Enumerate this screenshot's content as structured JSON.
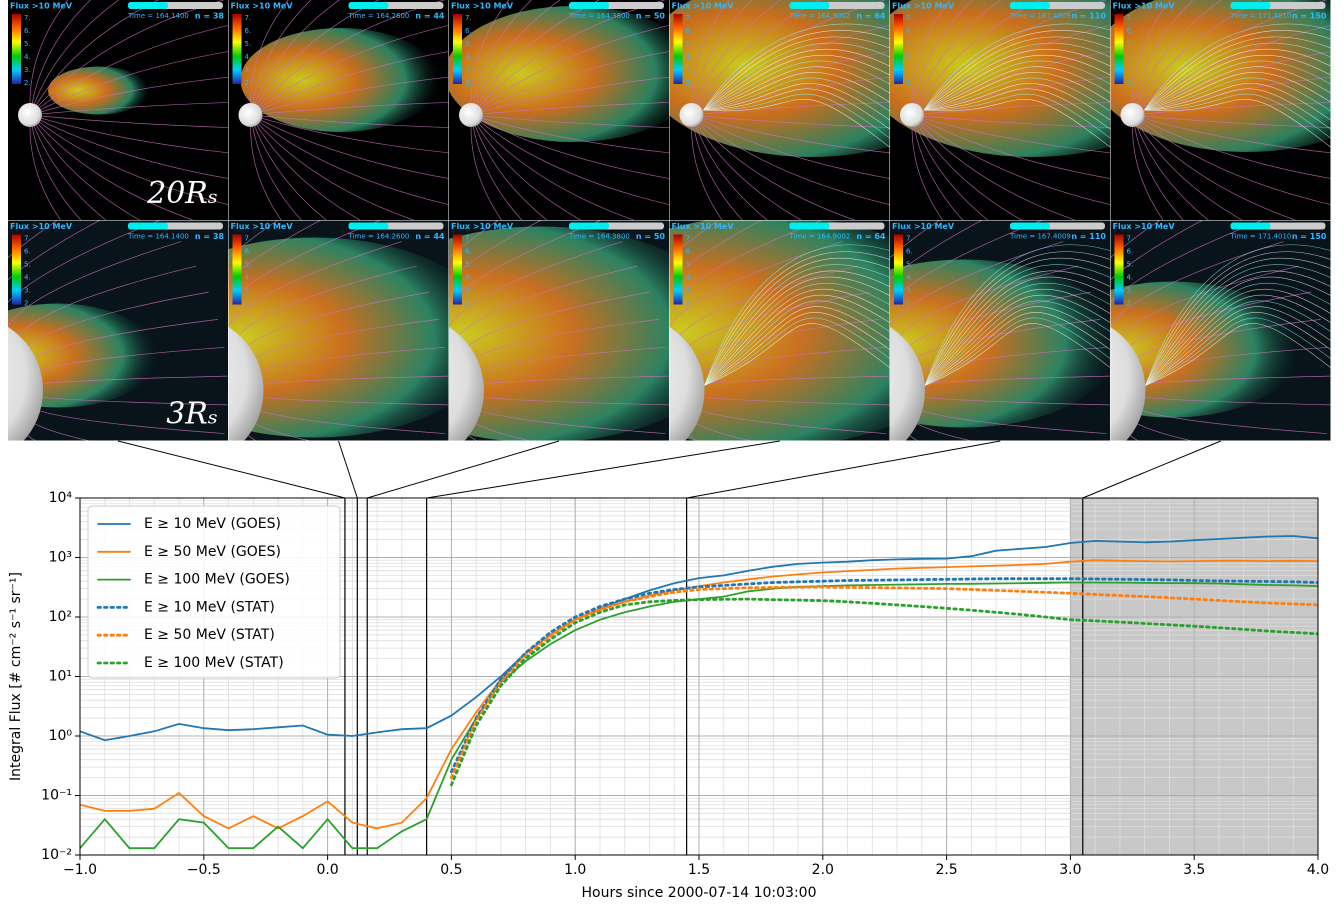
{
  "panel_title": "Flux >10 MeV",
  "colorbar_ticks": [
    "7.",
    "6.",
    "5.",
    "4.",
    "3.",
    "2."
  ],
  "row_labels": [
    "20Rₛ",
    "3Rₛ"
  ],
  "panels": [
    {
      "time": "Time = 164.1400",
      "n": "n = 38"
    },
    {
      "time": "Time = 164.2600",
      "n": "n = 44"
    },
    {
      "time": "Time = 164.3800",
      "n": "n = 50"
    },
    {
      "time": "Time = 164.9002",
      "n": "n = 64"
    },
    {
      "time": "Time = 167.4009",
      "n": "n = 110"
    },
    {
      "time": "Time = 171.4010",
      "n": "n = 150"
    },
    {
      "time": "Time = 164.1400",
      "n": "n = 38"
    },
    {
      "time": "Time = 164.2600",
      "n": "n = 44"
    },
    {
      "time": "Time = 164.3800",
      "n": "n = 50"
    },
    {
      "time": "Time = 164.9002",
      "n": "n = 64"
    },
    {
      "time": "Time = 167.4009",
      "n": "n = 110"
    },
    {
      "time": "Time = 171.4010",
      "n": "n = 150"
    }
  ],
  "chart_data": {
    "type": "line",
    "xlabel": "Hours since 2000-07-14 10:03:00",
    "ylabel": "Integral Flux [# cm⁻² s⁻¹ sr⁻¹]",
    "log_y": true,
    "grid": true,
    "minor_grid": true,
    "legend": "upper left",
    "xlim": [
      -1,
      4
    ],
    "ylim": [
      0.01,
      10000
    ],
    "xticks": [
      {
        "value": -1,
        "label": "−1.0"
      },
      {
        "value": -0.5,
        "label": "−0.5"
      },
      {
        "value": 0,
        "label": "0.0"
      },
      {
        "value": 0.5,
        "label": "0.5"
      },
      {
        "value": 1,
        "label": "1.0"
      },
      {
        "value": 1.5,
        "label": "1.5"
      },
      {
        "value": 2,
        "label": "2.0"
      },
      {
        "value": 2.5,
        "label": "2.5"
      },
      {
        "value": 3,
        "label": "3.0"
      },
      {
        "value": 3.5,
        "label": "3.5"
      },
      {
        "value": 4,
        "label": "4.0"
      }
    ],
    "yticks": [
      {
        "value": 0.01,
        "label": "10⁻²"
      },
      {
        "value": 0.1,
        "label": "10⁻¹"
      },
      {
        "value": 1,
        "label": "10⁰"
      },
      {
        "value": 10,
        "label": "10¹"
      },
      {
        "value": 100,
        "label": "10²"
      },
      {
        "value": 1000,
        "label": "10³"
      },
      {
        "value": 10000,
        "label": "10⁴"
      }
    ],
    "vlines": [
      0.07,
      0.12,
      0.16,
      0.4,
      1.45,
      3.05
    ],
    "shade": [
      3.0,
      4.0
    ],
    "x": [
      -1.0,
      -0.9,
      -0.8,
      -0.7,
      -0.6,
      -0.5,
      -0.4,
      -0.3,
      -0.2,
      -0.1,
      0.0,
      0.1,
      0.2,
      0.3,
      0.4,
      0.5,
      0.6,
      0.7,
      0.8,
      0.9,
      1.0,
      1.1,
      1.2,
      1.3,
      1.4,
      1.5,
      1.6,
      1.7,
      1.8,
      1.9,
      2.0,
      2.1,
      2.2,
      2.3,
      2.4,
      2.5,
      2.6,
      2.7,
      2.8,
      2.9,
      3.0,
      3.1,
      3.2,
      3.3,
      3.4,
      3.5,
      3.6,
      3.7,
      3.8,
      3.9,
      4.0
    ],
    "series": [
      {
        "name": "E ≥ 10 MeV (GOES)",
        "color": "#1f77b4",
        "style": "solid",
        "values": [
          1.2,
          0.85,
          1.0,
          1.2,
          1.6,
          1.35,
          1.25,
          1.3,
          1.4,
          1.5,
          1.05,
          1.0,
          1.15,
          1.3,
          1.35,
          2.2,
          4.5,
          10,
          25,
          50,
          90,
          140,
          200,
          280,
          370,
          450,
          500,
          600,
          700,
          780,
          820,
          850,
          900,
          930,
          950,
          960,
          1050,
          1300,
          1400,
          1500,
          1750,
          1900,
          1850,
          1800,
          1850,
          1950,
          2050,
          2150,
          2250,
          2300,
          2100
        ]
      },
      {
        "name": "E ≥ 50 MeV (GOES)",
        "color": "#ff7f0e",
        "style": "solid",
        "values": [
          0.07,
          0.055,
          0.055,
          0.06,
          0.11,
          0.045,
          0.028,
          0.045,
          0.028,
          0.045,
          0.08,
          0.035,
          0.028,
          0.035,
          0.09,
          0.6,
          2.5,
          9,
          25,
          50,
          90,
          130,
          180,
          230,
          280,
          330,
          380,
          430,
          480,
          520,
          560,
          590,
          620,
          650,
          670,
          690,
          710,
          730,
          750,
          780,
          850,
          900,
          880,
          870,
          860,
          870,
          880,
          880,
          870,
          880,
          870
        ]
      },
      {
        "name": "E ≥ 100 MeV (GOES)",
        "color": "#2ca02c",
        "style": "solid",
        "values": [
          0.013,
          0.04,
          0.013,
          0.013,
          0.04,
          0.035,
          0.013,
          0.013,
          0.03,
          0.013,
          0.04,
          0.013,
          0.013,
          0.025,
          0.04,
          0.4,
          2,
          8,
          18,
          35,
          60,
          90,
          120,
          150,
          180,
          200,
          220,
          270,
          300,
          320,
          330,
          340,
          345,
          350,
          355,
          360,
          362,
          365,
          370,
          375,
          380,
          380,
          378,
          375,
          372,
          370,
          365,
          355,
          345,
          340,
          330
        ]
      },
      {
        "name": "E ≥ 10 MeV (STAT)",
        "color": "#1f77b4",
        "style": "dotted",
        "values": [
          null,
          null,
          null,
          null,
          null,
          null,
          null,
          null,
          null,
          null,
          null,
          null,
          null,
          null,
          null,
          0.25,
          2,
          9,
          25,
          55,
          100,
          150,
          200,
          250,
          290,
          320,
          340,
          360,
          380,
          390,
          400,
          410,
          415,
          420,
          425,
          430,
          435,
          440,
          440,
          440,
          440,
          435,
          430,
          425,
          420,
          410,
          405,
          400,
          395,
          390,
          380
        ]
      },
      {
        "name": "E ≥ 50 MeV (STAT)",
        "color": "#ff7f0e",
        "style": "dotted",
        "values": [
          null,
          null,
          null,
          null,
          null,
          null,
          null,
          null,
          null,
          null,
          null,
          null,
          null,
          null,
          null,
          0.2,
          1.8,
          8,
          22,
          48,
          90,
          135,
          180,
          220,
          260,
          290,
          300,
          310,
          315,
          318,
          320,
          315,
          312,
          308,
          304,
          300,
          290,
          280,
          270,
          260,
          250,
          240,
          230,
          220,
          210,
          200,
          190,
          180,
          172,
          166,
          160
        ]
      },
      {
        "name": "E ≥ 100 MeV (STAT)",
        "color": "#2ca02c",
        "style": "dotted",
        "values": [
          null,
          null,
          null,
          null,
          null,
          null,
          null,
          null,
          null,
          null,
          null,
          null,
          null,
          null,
          null,
          0.15,
          1.5,
          7,
          20,
          42,
          80,
          120,
          160,
          180,
          190,
          195,
          198,
          200,
          195,
          192,
          188,
          180,
          170,
          160,
          150,
          140,
          130,
          120,
          110,
          100,
          90,
          86,
          82,
          78,
          74,
          70,
          66,
          62,
          58,
          55,
          52
        ]
      }
    ]
  }
}
